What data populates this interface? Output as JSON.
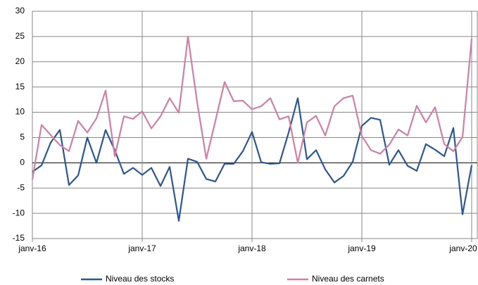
{
  "chart_data": {
    "type": "line",
    "categories": [
      "janv-16",
      null,
      null,
      null,
      null,
      null,
      null,
      null,
      null,
      null,
      null,
      null,
      "janv-17",
      null,
      null,
      null,
      null,
      null,
      null,
      null,
      null,
      null,
      null,
      null,
      "janv-18",
      null,
      null,
      null,
      null,
      null,
      null,
      null,
      null,
      null,
      null,
      null,
      "janv-19",
      null,
      null,
      null,
      null,
      null,
      null,
      null,
      null,
      null,
      null,
      null,
      "janv-20"
    ],
    "series": [
      {
        "name": "Niveau des stocks",
        "color": "#2b5797",
        "values": [
          -1.8,
          -0.5,
          4,
          6.5,
          -4.4,
          -2.5,
          5,
          0,
          6.5,
          2.5,
          -2.2,
          -1,
          -2.4,
          -1,
          -4.6,
          -0.8,
          -11.5,
          0.8,
          0.2,
          -3.2,
          -3.7,
          -0.2,
          -0.2,
          2.3,
          6.1,
          0.1,
          -0.2,
          -0.1,
          6,
          12.8,
          0.7,
          2.5,
          -1.3,
          -3.9,
          -2.6,
          0.2,
          7.3,
          8.9,
          8.5,
          -0.4,
          2.5,
          -0.6,
          -1.6,
          3.7,
          2.6,
          1.3,
          6.9,
          -10.2,
          -0.5
        ]
      },
      {
        "name": "Niveau des carnets",
        "color": "#d17fa5",
        "values": [
          -3.3,
          7.5,
          5.5,
          3.5,
          2.3,
          8.3,
          6,
          8.8,
          14.3,
          1.3,
          9.2,
          8.7,
          10.2,
          6.8,
          9.2,
          12.8,
          9.9,
          25,
          12,
          0.8,
          8.3,
          16,
          12.2,
          12.3,
          10.6,
          11.2,
          12.8,
          8.6,
          9.2,
          0,
          8,
          9.3,
          5.4,
          11.2,
          12.8,
          13.3,
          5.3,
          2.5,
          1.8,
          3.6,
          6.6,
          5.4,
          11.3,
          8,
          11,
          3.7,
          2.3,
          5.1,
          24.6
        ]
      }
    ],
    "ylim": [
      -15,
      30
    ],
    "yticks": [
      -15,
      -10,
      -5,
      0,
      5,
      10,
      15,
      20,
      25,
      30
    ],
    "grid": true,
    "legend": "bottom"
  }
}
